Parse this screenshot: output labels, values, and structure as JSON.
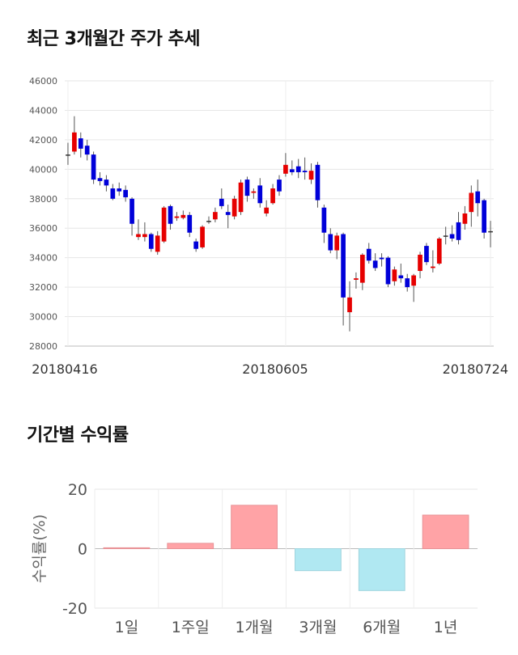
{
  "sections": {
    "price_title": "최근 3개월간 주가 추세",
    "returns_title": "기간별 수익률"
  },
  "chart_data": [
    {
      "type": "candlestick",
      "title": "최근 3개월간 주가 추세",
      "ylim": [
        28000,
        46000
      ],
      "y_ticks": [
        "46000",
        "44000",
        "42000",
        "40000",
        "38000",
        "36000",
        "34000",
        "32000",
        "30000",
        "28000"
      ],
      "x_tick_labels": [
        "20180416",
        "20180605",
        "20180724"
      ],
      "colors": {
        "up": "#e60000",
        "down": "#0000d9",
        "flat": "#333333"
      },
      "candles": [
        [
          41000,
          41000,
          40300,
          41800
        ],
        [
          41200,
          42500,
          41000,
          43600
        ],
        [
          42100,
          41400,
          40800,
          42500
        ],
        [
          41600,
          41000,
          40600,
          42000
        ],
        [
          41000,
          39300,
          39000,
          41200
        ],
        [
          39400,
          39200,
          38900,
          39800
        ],
        [
          39300,
          38900,
          38500,
          39600
        ],
        [
          38700,
          38000,
          37900,
          39000
        ],
        [
          38700,
          38500,
          38200,
          39100
        ],
        [
          38600,
          38100,
          37800,
          38900
        ],
        [
          38000,
          36300,
          35500,
          38100
        ],
        [
          35400,
          35600,
          35200,
          36600
        ],
        [
          35400,
          35600,
          35100,
          36400
        ],
        [
          35600,
          34600,
          34400,
          35700
        ],
        [
          34400,
          35500,
          34200,
          35800
        ],
        [
          35100,
          37400,
          35000,
          37500
        ],
        [
          37500,
          36300,
          35900,
          37600
        ],
        [
          36700,
          36800,
          36500,
          37100
        ],
        [
          36700,
          36900,
          36600,
          37200
        ],
        [
          36900,
          35700,
          35400,
          37100
        ],
        [
          35100,
          34600,
          34400,
          35300
        ],
        [
          34700,
          36100,
          34600,
          36200
        ],
        [
          36500,
          36500,
          36300,
          36800
        ],
        [
          36600,
          37100,
          36400,
          37400
        ],
        [
          38000,
          37500,
          37300,
          38700
        ],
        [
          37100,
          36900,
          36000,
          37600
        ],
        [
          36800,
          38000,
          36600,
          38200
        ],
        [
          37100,
          39100,
          36900,
          39300
        ],
        [
          39300,
          38200,
          37800,
          39500
        ],
        [
          38400,
          38500,
          38000,
          38700
        ],
        [
          38900,
          37700,
          37400,
          39400
        ],
        [
          37000,
          37400,
          36800,
          37900
        ],
        [
          37700,
          38700,
          37600,
          39000
        ],
        [
          39300,
          38500,
          38200,
          39600
        ],
        [
          39700,
          40300,
          39500,
          41100
        ],
        [
          40000,
          39800,
          39600,
          40600
        ],
        [
          40200,
          39800,
          39400,
          40700
        ],
        [
          39900,
          39800,
          39300,
          40800
        ],
        [
          39300,
          39900,
          39000,
          40400
        ],
        [
          40300,
          37900,
          37400,
          40500
        ],
        [
          37400,
          35700,
          35000,
          37600
        ],
        [
          35600,
          34500,
          34300,
          36000
        ],
        [
          34500,
          35500,
          33900,
          35700
        ],
        [
          35600,
          31300,
          29400,
          35700
        ],
        [
          30300,
          31300,
          29000,
          32400
        ],
        [
          32500,
          32600,
          31900,
          33000
        ],
        [
          32300,
          34200,
          31800,
          34300
        ],
        [
          34600,
          33800,
          33600,
          35000
        ],
        [
          33800,
          33300,
          33100,
          34300
        ],
        [
          34000,
          33900,
          33400,
          34300
        ],
        [
          34000,
          32200,
          32000,
          34100
        ],
        [
          32400,
          33200,
          32100,
          33400
        ],
        [
          32800,
          32600,
          32300,
          33600
        ],
        [
          32600,
          32000,
          31700,
          32900
        ],
        [
          32100,
          32800,
          31000,
          32900
        ],
        [
          33100,
          34200,
          32600,
          34400
        ],
        [
          34800,
          33700,
          33500,
          35000
        ],
        [
          33300,
          33400,
          33000,
          34500
        ],
        [
          33600,
          35300,
          33500,
          35400
        ],
        [
          35500,
          35500,
          34900,
          36100
        ],
        [
          35600,
          35300,
          35100,
          36200
        ],
        [
          36400,
          35200,
          34900,
          37100
        ],
        [
          36300,
          37000,
          35900,
          37500
        ],
        [
          37100,
          38400,
          36100,
          38900
        ],
        [
          38500,
          37700,
          36800,
          39300
        ],
        [
          37900,
          35700,
          35300,
          38000
        ],
        [
          35800,
          35800,
          34700,
          36500
        ]
      ]
    },
    {
      "type": "bar",
      "title": "기간별 수익률",
      "ylabel": "수익률(%)",
      "ylim": [
        -20,
        20
      ],
      "y_ticks": [
        "20",
        "0",
        "-20"
      ],
      "categories": [
        "1일",
        "1주일",
        "1개월",
        "3개월",
        "6개월",
        "1년"
      ],
      "values": [
        0.3,
        1.8,
        14.6,
        -7.4,
        -14.1,
        11.3
      ],
      "colors": {
        "positive": "#ffa3a6",
        "positive_edge": "#e89296",
        "negative": "#b0e8f2",
        "negative_edge": "#9fd4de"
      }
    }
  ]
}
